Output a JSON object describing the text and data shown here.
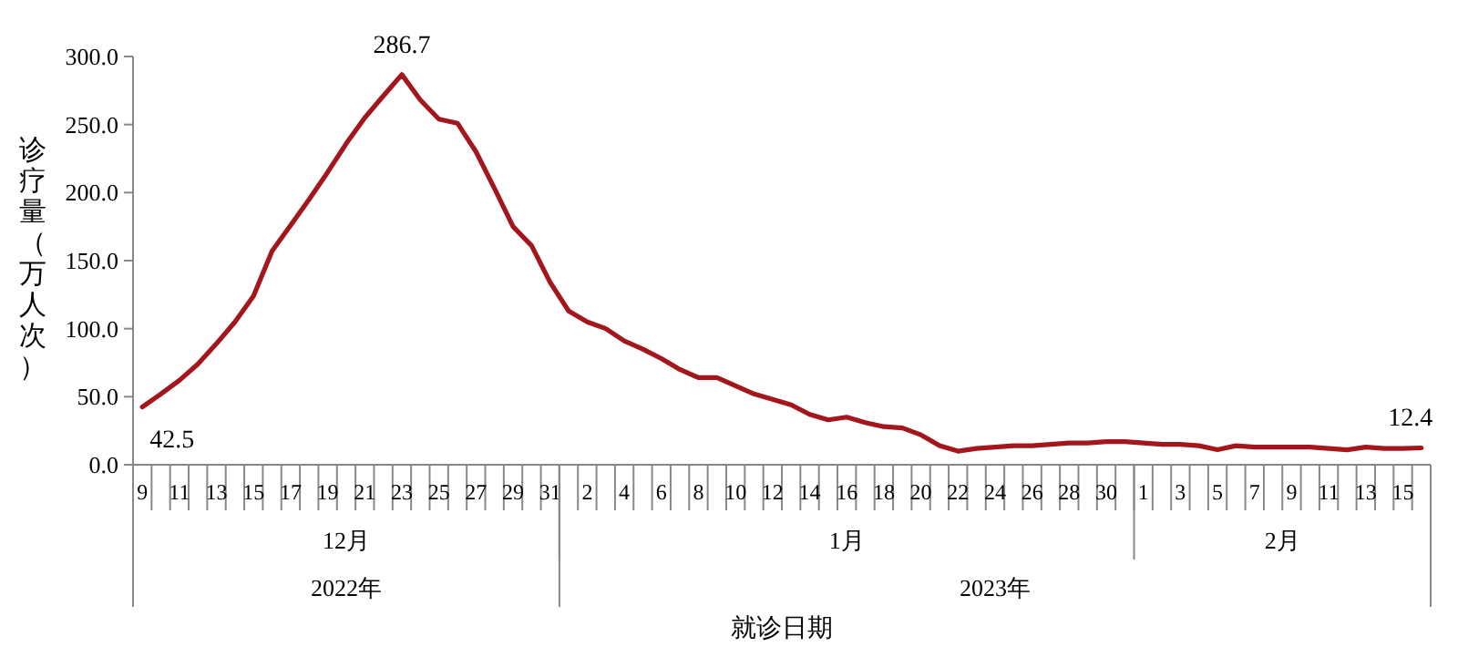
{
  "chart_data": {
    "type": "line",
    "xlabel": "就诊日期",
    "ylabel": "诊疗量（万人次）",
    "x": [
      "2022-12-09",
      "2022-12-10",
      "2022-12-11",
      "2022-12-12",
      "2022-12-13",
      "2022-12-14",
      "2022-12-15",
      "2022-12-16",
      "2022-12-17",
      "2022-12-18",
      "2022-12-19",
      "2022-12-20",
      "2022-12-21",
      "2022-12-22",
      "2022-12-23",
      "2022-12-24",
      "2022-12-25",
      "2022-12-26",
      "2022-12-27",
      "2022-12-28",
      "2022-12-29",
      "2022-12-30",
      "2022-12-31",
      "2023-01-01",
      "2023-01-02",
      "2023-01-03",
      "2023-01-04",
      "2023-01-05",
      "2023-01-06",
      "2023-01-07",
      "2023-01-08",
      "2023-01-09",
      "2023-01-10",
      "2023-01-11",
      "2023-01-12",
      "2023-01-13",
      "2023-01-14",
      "2023-01-15",
      "2023-01-16",
      "2023-01-17",
      "2023-01-18",
      "2023-01-19",
      "2023-01-20",
      "2023-01-21",
      "2023-01-22",
      "2023-01-23",
      "2023-01-24",
      "2023-01-25",
      "2023-01-26",
      "2023-01-27",
      "2023-01-28",
      "2023-01-29",
      "2023-01-30",
      "2023-01-31",
      "2023-02-01",
      "2023-02-02",
      "2023-02-03",
      "2023-02-04",
      "2023-02-05",
      "2023-02-06",
      "2023-02-07",
      "2023-02-08",
      "2023-02-09",
      "2023-02-10",
      "2023-02-11",
      "2023-02-12",
      "2023-02-13",
      "2023-02-14",
      "2023-02-15",
      "2023-02-16"
    ],
    "xticks": [
      {
        "value": "2022-12-09",
        "label": "9"
      },
      {
        "value": "2022-12-11",
        "label": "11"
      },
      {
        "value": "2022-12-13",
        "label": "13"
      },
      {
        "value": "2022-12-15",
        "label": "15"
      },
      {
        "value": "2022-12-17",
        "label": "17"
      },
      {
        "value": "2022-12-19",
        "label": "19"
      },
      {
        "value": "2022-12-21",
        "label": "21"
      },
      {
        "value": "2022-12-23",
        "label": "23"
      },
      {
        "value": "2022-12-25",
        "label": "25"
      },
      {
        "value": "2022-12-27",
        "label": "27"
      },
      {
        "value": "2022-12-29",
        "label": "29"
      },
      {
        "value": "2022-12-31",
        "label": "31"
      },
      {
        "value": "2023-01-02",
        "label": "2"
      },
      {
        "value": "2023-01-04",
        "label": "4"
      },
      {
        "value": "2023-01-06",
        "label": "6"
      },
      {
        "value": "2023-01-08",
        "label": "8"
      },
      {
        "value": "2023-01-10",
        "label": "10"
      },
      {
        "value": "2023-01-12",
        "label": "12"
      },
      {
        "value": "2023-01-14",
        "label": "14"
      },
      {
        "value": "2023-01-16",
        "label": "16"
      },
      {
        "value": "2023-01-18",
        "label": "18"
      },
      {
        "value": "2023-01-20",
        "label": "20"
      },
      {
        "value": "2023-01-22",
        "label": "22"
      },
      {
        "value": "2023-01-24",
        "label": "24"
      },
      {
        "value": "2023-01-26",
        "label": "26"
      },
      {
        "value": "2023-01-28",
        "label": "28"
      },
      {
        "value": "2023-01-30",
        "label": "30"
      },
      {
        "value": "2023-02-01",
        "label": "1"
      },
      {
        "value": "2023-02-03",
        "label": "3"
      },
      {
        "value": "2023-02-05",
        "label": "5"
      },
      {
        "value": "2023-02-07",
        "label": "7"
      },
      {
        "value": "2023-02-09",
        "label": "9"
      },
      {
        "value": "2023-02-11",
        "label": "11"
      },
      {
        "value": "2023-02-13",
        "label": "13"
      },
      {
        "value": "2023-02-15",
        "label": "15"
      }
    ],
    "xlim": [
      "2022-12-09",
      "2023-02-16"
    ],
    "ylim": [
      0,
      300
    ],
    "yticks": [
      {
        "value": 0,
        "label": "0.0"
      },
      {
        "value": 50,
        "label": "50.0"
      },
      {
        "value": 100,
        "label": "100.0"
      },
      {
        "value": 150,
        "label": "150.0"
      },
      {
        "value": 200,
        "label": "200.0"
      },
      {
        "value": 250,
        "label": "250.0"
      },
      {
        "value": 300,
        "label": "300.0"
      }
    ],
    "series": [
      {
        "color": "#a3161c",
        "values": [
          42.5,
          52,
          62,
          74,
          89,
          105,
          124,
          157,
          176,
          195,
          215,
          236,
          255,
          271,
          286.7,
          268,
          254,
          251,
          230,
          203,
          175,
          161,
          134,
          113,
          105,
          100,
          91,
          85,
          78,
          70,
          64,
          64,
          58,
          52,
          48,
          44,
          37,
          33,
          35,
          31,
          28,
          27,
          22,
          14,
          10,
          12,
          13,
          14,
          14,
          15,
          16,
          16,
          17,
          17,
          16,
          15,
          15,
          14,
          11,
          14,
          13,
          13,
          13,
          13,
          12,
          11,
          13,
          12,
          12,
          12.4
        ],
        "value_labels": [
          "42.5",
          null,
          null,
          null,
          null,
          null,
          null,
          null,
          null,
          null,
          null,
          null,
          null,
          null,
          "286.7",
          null,
          null,
          null,
          null,
          null,
          null,
          null,
          null,
          null,
          null,
          null,
          null,
          null,
          null,
          null,
          null,
          null,
          null,
          null,
          null,
          null,
          null,
          null,
          null,
          null,
          null,
          null,
          null,
          null,
          null,
          null,
          null,
          null,
          null,
          null,
          null,
          null,
          null,
          null,
          null,
          null,
          null,
          null,
          null,
          null,
          null,
          null,
          null,
          null,
          null,
          null,
          null,
          null,
          null,
          "12.4"
        ]
      }
    ],
    "annotations": [
      "12月",
      "1月",
      "2月",
      "2022年",
      "2023年"
    ],
    "grid": false,
    "marker": "none",
    "line_style": "solid"
  }
}
